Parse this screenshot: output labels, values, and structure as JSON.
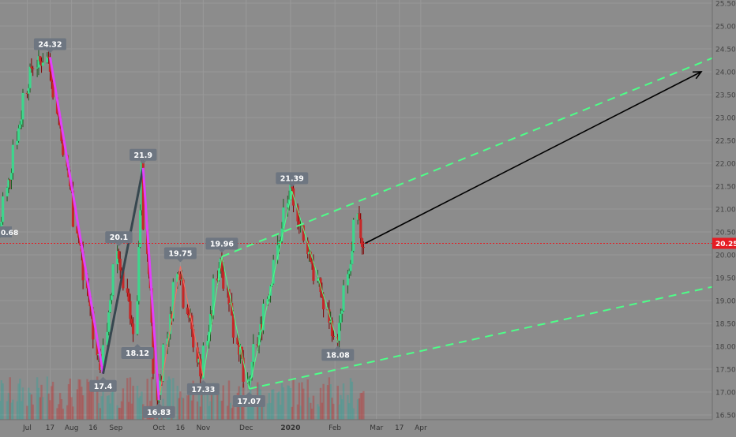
{
  "chart_data": {
    "type": "candlestick",
    "symbol": "",
    "title": "",
    "x_axis_ticks": [
      "Jul",
      "17",
      "Aug",
      "16",
      "Sep",
      "Oct",
      "16",
      "Nov",
      "Dec",
      "2020",
      "Feb",
      "Mar",
      "17",
      "Apr"
    ],
    "y_axis_ticks": [
      "25.50",
      "25.00",
      "24.50",
      "24.00",
      "23.50",
      "23.00",
      "22.50",
      "22.00",
      "21.50",
      "21.00",
      "20.50",
      "20.00",
      "19.50",
      "19.00",
      "18.50",
      "18.00",
      "17.50",
      "17.00",
      "16.50"
    ],
    "ylim": [
      16.4,
      25.55
    ],
    "current_price": {
      "value": 20.25,
      "label": "20.25"
    },
    "left_edge_label": "0.68",
    "pivot_labels": [
      {
        "text": "24.32",
        "value": 24.32,
        "date": "2019-07-17"
      },
      {
        "text": "17.4",
        "value": 17.4,
        "date": "2019-08-23"
      },
      {
        "text": "20.1",
        "value": 20.1,
        "date": "2019-09-03"
      },
      {
        "text": "21.9",
        "value": 21.9,
        "date": "2019-09-20"
      },
      {
        "text": "18.12",
        "value": 18.12,
        "date": "2019-09-16"
      },
      {
        "text": "16.83",
        "value": 16.83,
        "date": "2019-10-01"
      },
      {
        "text": "19.75",
        "value": 19.75,
        "date": "2019-10-16"
      },
      {
        "text": "17.33",
        "value": 17.33,
        "date": "2019-11-01"
      },
      {
        "text": "19.96",
        "value": 19.96,
        "date": "2019-11-14"
      },
      {
        "text": "17.07",
        "value": 17.07,
        "date": "2019-12-03"
      },
      {
        "text": "21.39",
        "value": 21.39,
        "date": "2020-01-02"
      },
      {
        "text": "18.08",
        "value": 18.08,
        "date": "2020-02-03"
      }
    ],
    "projection_arrow": {
      "from_price": 20.25,
      "to_price": 24.0
    },
    "channel_upper": [
      19.96,
      24.3
    ],
    "channel_lower": [
      17.07,
      19.3
    ],
    "colors": {
      "background": "#8c8c8c",
      "up": "#26a69a",
      "up_body": "#3dd68c",
      "down": "#c62828",
      "current_line": "#e51c23",
      "zigzag_down": "#e040fb",
      "zigzag_up": "#37474f",
      "wave_green": "#4dff88",
      "wave_red": "#ff6b5e",
      "channel": "#4dff88",
      "label_bg": "#6e7681",
      "label_text": "#ffffff",
      "arrow": "#000000"
    }
  }
}
